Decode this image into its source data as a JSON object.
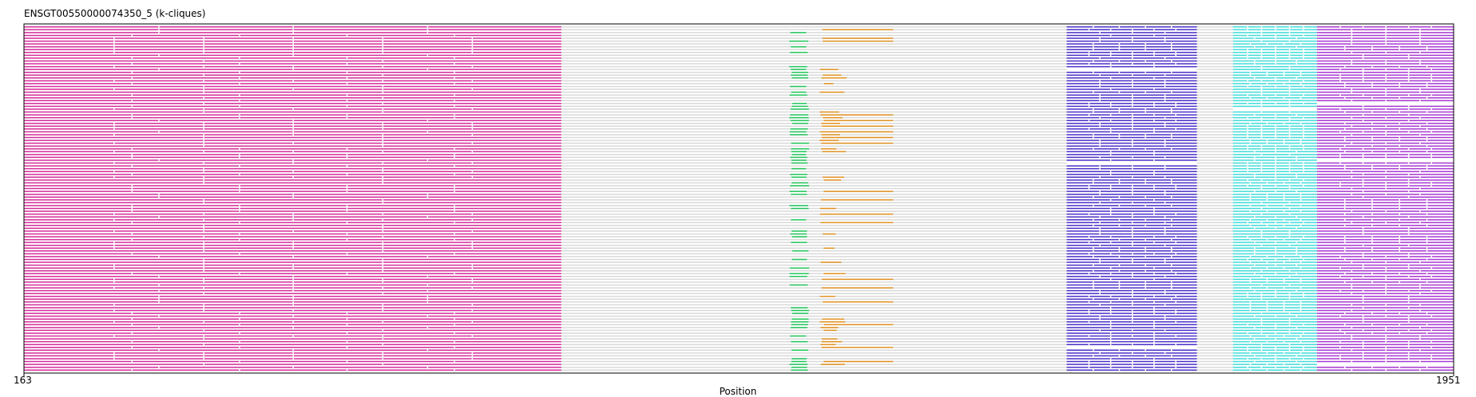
{
  "chart_data": {
    "type": "alignment-track",
    "title": "ENSGT00550000074350_5 (k-cliques)",
    "xlabel": "Position",
    "xlim": [
      163,
      1951
    ],
    "x_ticks": [
      "163",
      "1951"
    ],
    "n_rows": 122,
    "gap_color": "#d9d9d9",
    "colors": {
      "magenta": "#d52b9a",
      "green": "#20c55a",
      "orange": "#e09020",
      "blue": "#4b2fc8",
      "cyan": "#40dcd8",
      "purple": "#a838d2"
    },
    "blocks": [
      {
        "name": "magenta",
        "start": 163,
        "end": 835,
        "color": "#d52b9a",
        "coverage": 0.9
      },
      {
        "name": "green",
        "start": 1120,
        "end": 1145,
        "color": "#20c55a",
        "coverage": 0.45
      },
      {
        "name": "orange",
        "start": 1158,
        "end": 1193,
        "color": "#e09020",
        "coverage": 0.3
      },
      {
        "name": "blue",
        "start": 1467,
        "end": 1630,
        "color": "#4b2fc8",
        "coverage": 0.9
      },
      {
        "name": "cyan",
        "start": 1675,
        "end": 1780,
        "color": "#40dcd8",
        "coverage": 0.9
      },
      {
        "name": "purple",
        "start": 1780,
        "end": 1951,
        "color": "#a838d2",
        "coverage": 0.9
      }
    ],
    "grid": false
  }
}
